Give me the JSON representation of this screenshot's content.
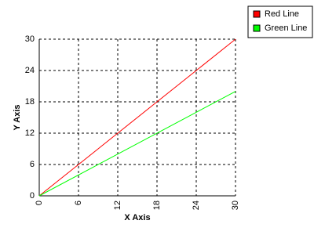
{
  "chart_data": {
    "type": "line",
    "x_label": "X Axis",
    "y_label": "Y Axis",
    "x": [
      0,
      30
    ],
    "series": [
      {
        "name": "Red Line",
        "color": "#ff0000",
        "values": [
          0,
          30
        ]
      },
      {
        "name": "Green Line",
        "color": "#00ff00",
        "values": [
          0,
          20
        ]
      }
    ],
    "xlim": [
      0,
      30
    ],
    "xticks": [
      0,
      6,
      12,
      18,
      24,
      30
    ],
    "ylim": [
      0,
      30
    ],
    "yticks": [
      0,
      6,
      12,
      18,
      24,
      30
    ],
    "grid": true,
    "legend": "top-right"
  }
}
